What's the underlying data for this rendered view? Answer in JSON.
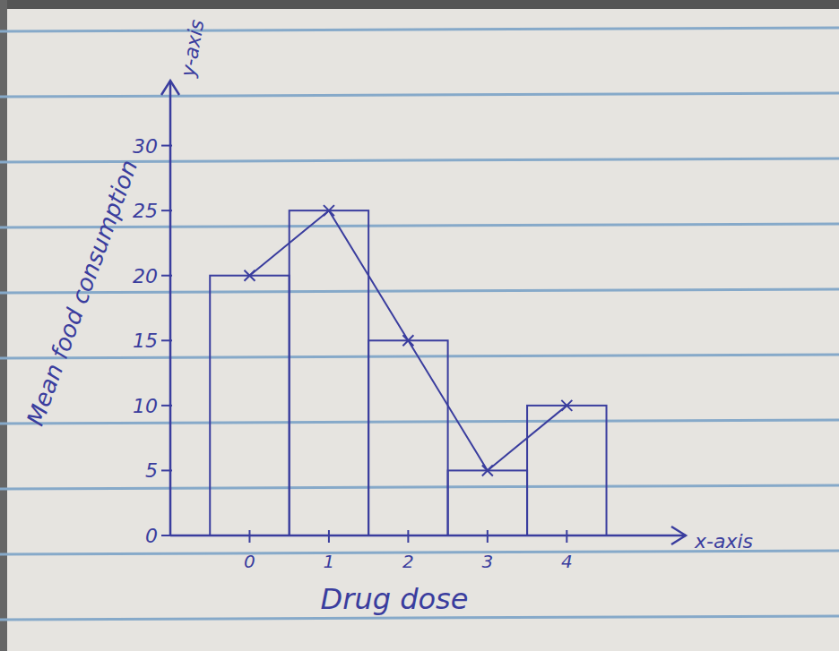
{
  "chart_data": {
    "type": "bar",
    "xlabel": "Drug dose",
    "ylabel": "Mean food consumption",
    "annotations": [
      "y-axis",
      "x-axis"
    ],
    "x": [
      0,
      1,
      2,
      3,
      4
    ],
    "series": [
      {
        "type": "bar",
        "values": [
          20,
          25,
          15,
          5,
          10
        ]
      },
      {
        "type": "line",
        "marker": "x",
        "values": [
          20,
          25,
          15,
          5,
          10
        ]
      }
    ],
    "color": "#3a3d9e",
    "xlim": [
      -1,
      5.5
    ],
    "xticks": [
      0,
      1,
      2,
      3,
      4
    ],
    "ylim": [
      0,
      35
    ],
    "yticks": [
      0,
      5,
      10,
      15,
      20,
      25,
      30
    ],
    "grid": false
  }
}
